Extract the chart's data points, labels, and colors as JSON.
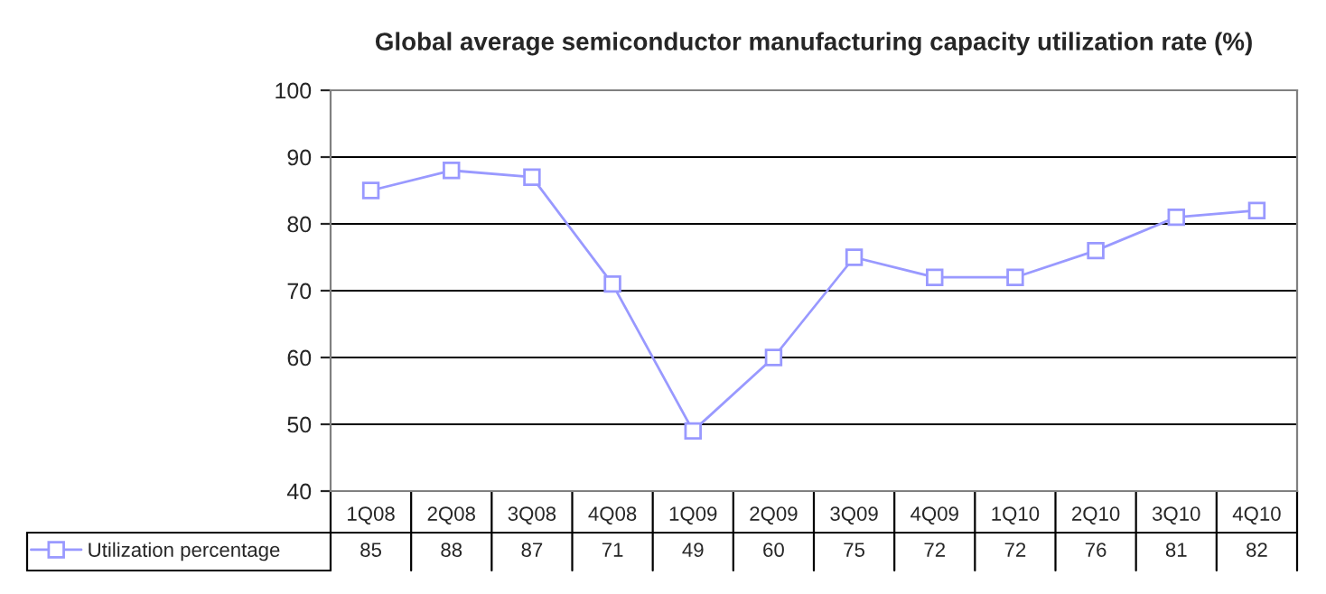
{
  "chart_data": {
    "type": "line",
    "title": "Global average semiconductor manufacturing capacity utilization rate (%)",
    "categories": [
      "1Q08",
      "2Q08",
      "3Q08",
      "4Q08",
      "1Q09",
      "2Q09",
      "3Q09",
      "4Q09",
      "1Q10",
      "2Q10",
      "3Q10",
      "4Q10"
    ],
    "series": [
      {
        "name": "Utilization percentage",
        "color": "#9999ff",
        "values": [
          85,
          88,
          87,
          71,
          49,
          60,
          75,
          72,
          72,
          76,
          81,
          82
        ]
      }
    ],
    "ylim": [
      40,
      100
    ],
    "yticks": [
      40,
      50,
      60,
      70,
      80,
      90,
      100
    ],
    "grid": "y",
    "marker": "square",
    "line_style": "solid",
    "data_labels": true,
    "legend": "bottom left"
  }
}
